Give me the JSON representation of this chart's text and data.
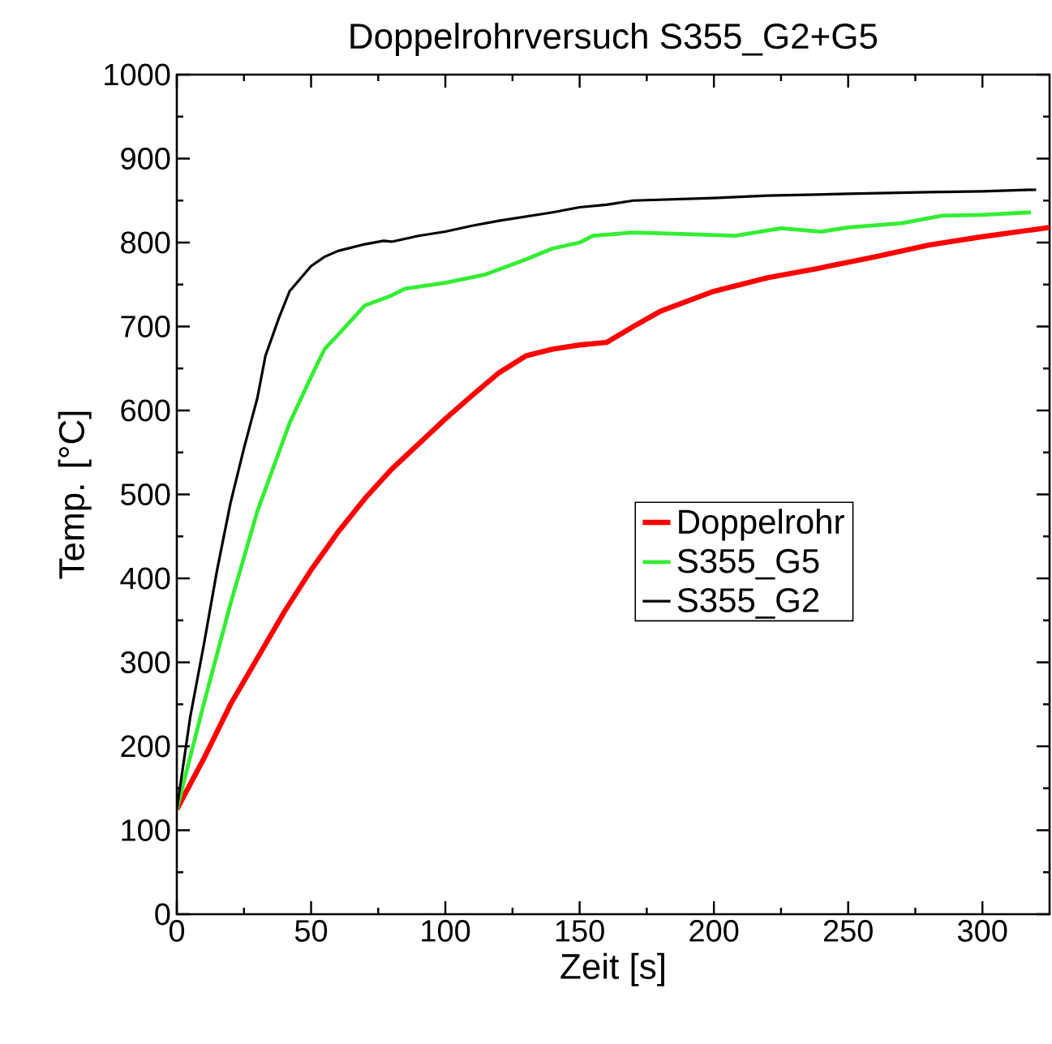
{
  "chart_data": {
    "type": "line",
    "title": "Doppelrohrversuch S355_G2+G5",
    "xlabel": "Zeit [s]",
    "ylabel": "Temp. [°C]",
    "xlim": [
      0,
      325
    ],
    "ylim": [
      0,
      1000
    ],
    "xticks": [
      0,
      50,
      100,
      150,
      200,
      250,
      300
    ],
    "yticks": [
      0,
      100,
      200,
      300,
      400,
      500,
      600,
      700,
      800,
      900,
      1000
    ],
    "grid": false,
    "legend": "right",
    "marker": "none",
    "line_style": "solid",
    "series": [
      {
        "name": "Doppelrohr",
        "color": "#ff0000",
        "x": [
          0,
          10,
          20,
          30,
          40,
          50,
          60,
          70,
          80,
          90,
          100,
          110,
          120,
          130,
          140,
          150,
          160,
          170,
          180,
          190,
          200,
          220,
          240,
          260,
          280,
          300,
          325
        ],
        "values": [
          125,
          185,
          250,
          305,
          360,
          410,
          455,
          495,
          530,
          560,
          590,
          618,
          645,
          665,
          673,
          678,
          681,
          700,
          718,
          730,
          742,
          758,
          770,
          783,
          797,
          807,
          818
        ]
      },
      {
        "name": "S355_G5",
        "color": "#33ee33",
        "x": [
          0,
          10,
          20,
          30,
          42,
          50,
          55,
          60,
          70,
          80,
          85,
          100,
          115,
          130,
          140,
          150,
          155,
          170,
          190,
          208,
          225,
          240,
          250,
          270,
          285,
          300,
          318
        ],
        "values": [
          125,
          250,
          370,
          480,
          585,
          640,
          673,
          690,
          725,
          737,
          745,
          752,
          762,
          780,
          793,
          800,
          808,
          812,
          810,
          808,
          817,
          813,
          818,
          823,
          832,
          833,
          836
        ]
      },
      {
        "name": "S355_G2",
        "color": "#000000",
        "x": [
          0,
          5,
          10,
          15,
          20,
          25,
          30,
          33,
          38,
          42,
          50,
          55,
          60,
          70,
          77,
          80,
          90,
          100,
          110,
          120,
          140,
          150,
          160,
          170,
          180,
          200,
          220,
          250,
          280,
          300,
          320
        ],
        "values": [
          125,
          235,
          320,
          410,
          490,
          555,
          615,
          665,
          710,
          742,
          772,
          783,
          790,
          798,
          802,
          801,
          808,
          813,
          820,
          826,
          836,
          842,
          845,
          850,
          851,
          853,
          856,
          858,
          860,
          861,
          863
        ]
      }
    ]
  }
}
